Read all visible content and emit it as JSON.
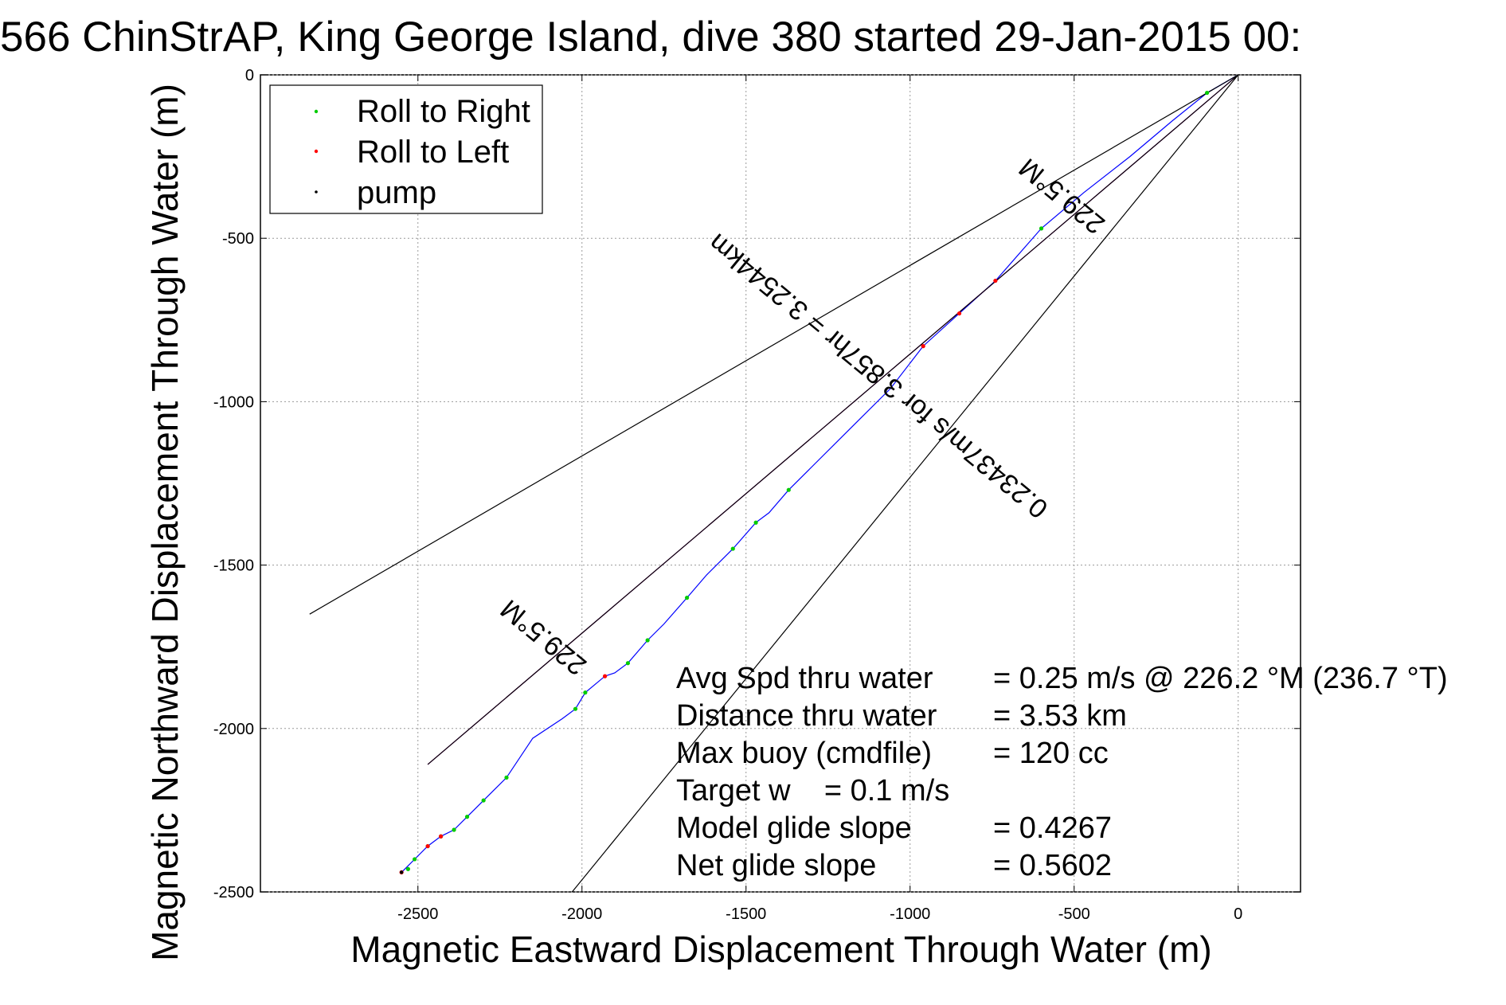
{
  "chart_data": {
    "type": "line",
    "title": "566 ChinStrAP, King George Island, dive 380 started 29-Jan-2015 00:",
    "xlabel": "Magnetic Eastward Displacement Through Water (m)",
    "ylabel": "Magnetic Northward Displacement Through Water (m)",
    "xlim": [
      -2980,
      190
    ],
    "ylim": [
      -2500,
      0
    ],
    "xticks": [
      -2500,
      -2000,
      -1500,
      -1000,
      -500,
      0
    ],
    "yticks": [
      0,
      -500,
      -1000,
      -1500,
      -2000,
      -2500
    ],
    "grid": true,
    "legend_position": "top-left",
    "legend": [
      {
        "label": "Roll to Right",
        "color": "#00cc00"
      },
      {
        "label": "Roll to Left",
        "color": "#ff0000"
      },
      {
        "label": "pump",
        "color": "#000000"
      }
    ],
    "series": [
      {
        "name": "track",
        "color": "#0000ff",
        "points": [
          [
            0,
            0
          ],
          [
            -95,
            -55
          ],
          [
            -200,
            -140
          ],
          [
            -330,
            -250
          ],
          [
            -470,
            -360
          ],
          [
            -600,
            -470
          ],
          [
            -740,
            -630
          ],
          [
            -850,
            -730
          ],
          [
            -960,
            -830
          ],
          [
            -1060,
            -960
          ],
          [
            -1180,
            -1080
          ],
          [
            -1300,
            -1200
          ],
          [
            -1370,
            -1270
          ],
          [
            -1430,
            -1340
          ],
          [
            -1470,
            -1370
          ],
          [
            -1540,
            -1450
          ],
          [
            -1620,
            -1530
          ],
          [
            -1680,
            -1600
          ],
          [
            -1750,
            -1680
          ],
          [
            -1800,
            -1730
          ],
          [
            -1860,
            -1800
          ],
          [
            -1900,
            -1830
          ],
          [
            -1930,
            -1840
          ],
          [
            -1990,
            -1890
          ],
          [
            -2020,
            -1940
          ],
          [
            -2060,
            -1970
          ],
          [
            -2150,
            -2030
          ],
          [
            -2230,
            -2150
          ],
          [
            -2300,
            -2220
          ],
          [
            -2350,
            -2270
          ],
          [
            -2390,
            -2310
          ],
          [
            -2430,
            -2330
          ],
          [
            -2470,
            -2360
          ],
          [
            -2510,
            -2400
          ],
          [
            -2550,
            -2440
          ]
        ]
      },
      {
        "name": "magnetic heading line",
        "color": "#cc00cc",
        "points": [
          [
            0,
            0
          ],
          [
            -2470,
            -2110
          ]
        ]
      },
      {
        "name": "heading bound 1",
        "color": "#000000",
        "points": [
          [
            0,
            0
          ],
          [
            -2830,
            -1650
          ]
        ]
      },
      {
        "name": "heading bound 2",
        "color": "#000000",
        "points": [
          [
            0,
            0
          ],
          [
            -2030,
            -2500
          ]
        ]
      },
      {
        "name": "heading bound 3",
        "color": "#000000",
        "points": [
          [
            0,
            0
          ],
          [
            -2470,
            -2110
          ]
        ]
      }
    ],
    "roll_right_points": [
      [
        -95,
        -55
      ],
      [
        -600,
        -470
      ],
      [
        -1370,
        -1270
      ],
      [
        -1470,
        -1370
      ],
      [
        -1540,
        -1450
      ],
      [
        -1680,
        -1600
      ],
      [
        -1800,
        -1730
      ],
      [
        -1860,
        -1800
      ],
      [
        -1990,
        -1890
      ],
      [
        -2020,
        -1940
      ],
      [
        -2230,
        -2150
      ],
      [
        -2300,
        -2220
      ],
      [
        -2350,
        -2270
      ],
      [
        -2390,
        -2310
      ],
      [
        -2430,
        -2330
      ],
      [
        -2470,
        -2360
      ],
      [
        -2510,
        -2400
      ],
      [
        -2530,
        -2430
      ]
    ],
    "roll_left_points": [
      [
        -740,
        -630
      ],
      [
        -850,
        -730
      ],
      [
        -960,
        -830
      ],
      [
        -1930,
        -1840
      ],
      [
        -2430,
        -2330
      ],
      [
        -2470,
        -2360
      ],
      [
        -2550,
        -2440
      ]
    ],
    "pump_points": [
      [
        -2550,
        -2440
      ]
    ],
    "rotated_annotations": [
      {
        "text": "229.5°M",
        "x": -520,
        "y": -350,
        "angle_deg": 219.5
      },
      {
        "text": "0.23437m/s for 3.857hr = 3.2544km",
        "x": -1080,
        "y": -900,
        "angle_deg": 219.5
      },
      {
        "text": "229.5°M",
        "x": -2100,
        "y": -1700,
        "angle_deg": 219.5
      }
    ],
    "stats": [
      {
        "label": "Avg Spd thru water",
        "value": "=  0.25 m/s @ 226.2 °M (236.7 °T)"
      },
      {
        "label": "Distance thru water",
        "value": "=  3.53 km"
      },
      {
        "label": "Max buoy (cmdfile)",
        "value": "= 120 cc"
      },
      {
        "label": "Target w    = 0.1 m/s",
        "value": ""
      },
      {
        "label": "Model glide slope",
        "value": "= 0.4267"
      },
      {
        "label": "Net glide slope",
        "value": "= 0.5602"
      }
    ]
  }
}
